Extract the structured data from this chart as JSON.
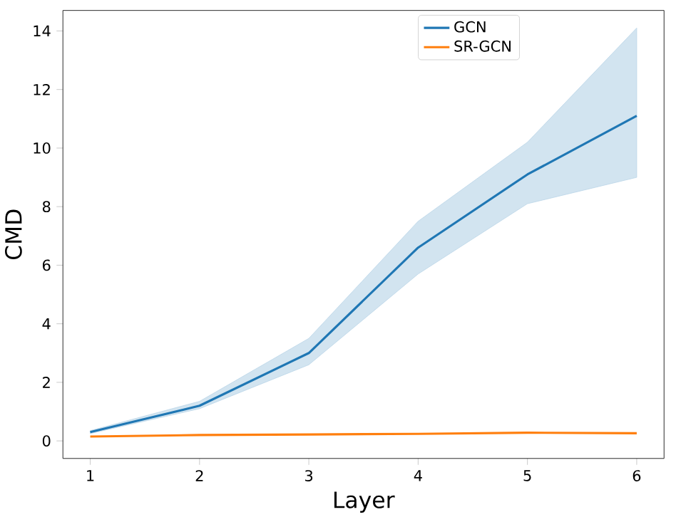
{
  "chart_data": {
    "type": "line",
    "xlabel": "Layer",
    "ylabel": "CMD",
    "x": [
      1,
      2,
      3,
      4,
      5,
      6
    ],
    "series": [
      {
        "name": "GCN",
        "color": "#1f77b4",
        "values": [
          0.3,
          1.2,
          3.0,
          6.6,
          9.1,
          11.1
        ],
        "lower": [
          0.25,
          1.1,
          2.6,
          5.7,
          8.1,
          9.0
        ],
        "upper": [
          0.35,
          1.35,
          3.5,
          7.5,
          10.2,
          14.1
        ]
      },
      {
        "name": "SR-GCN",
        "color": "#ff7f0e",
        "values": [
          0.15,
          0.2,
          0.22,
          0.24,
          0.28,
          0.26
        ]
      }
    ],
    "xlim": [
      0.75,
      6.25
    ],
    "ylim": [
      -0.6,
      14.7
    ],
    "xticks": [
      1,
      2,
      3,
      4,
      5,
      6
    ],
    "yticks": [
      0,
      2,
      4,
      6,
      8,
      10,
      12,
      14
    ],
    "legend": "top right"
  }
}
